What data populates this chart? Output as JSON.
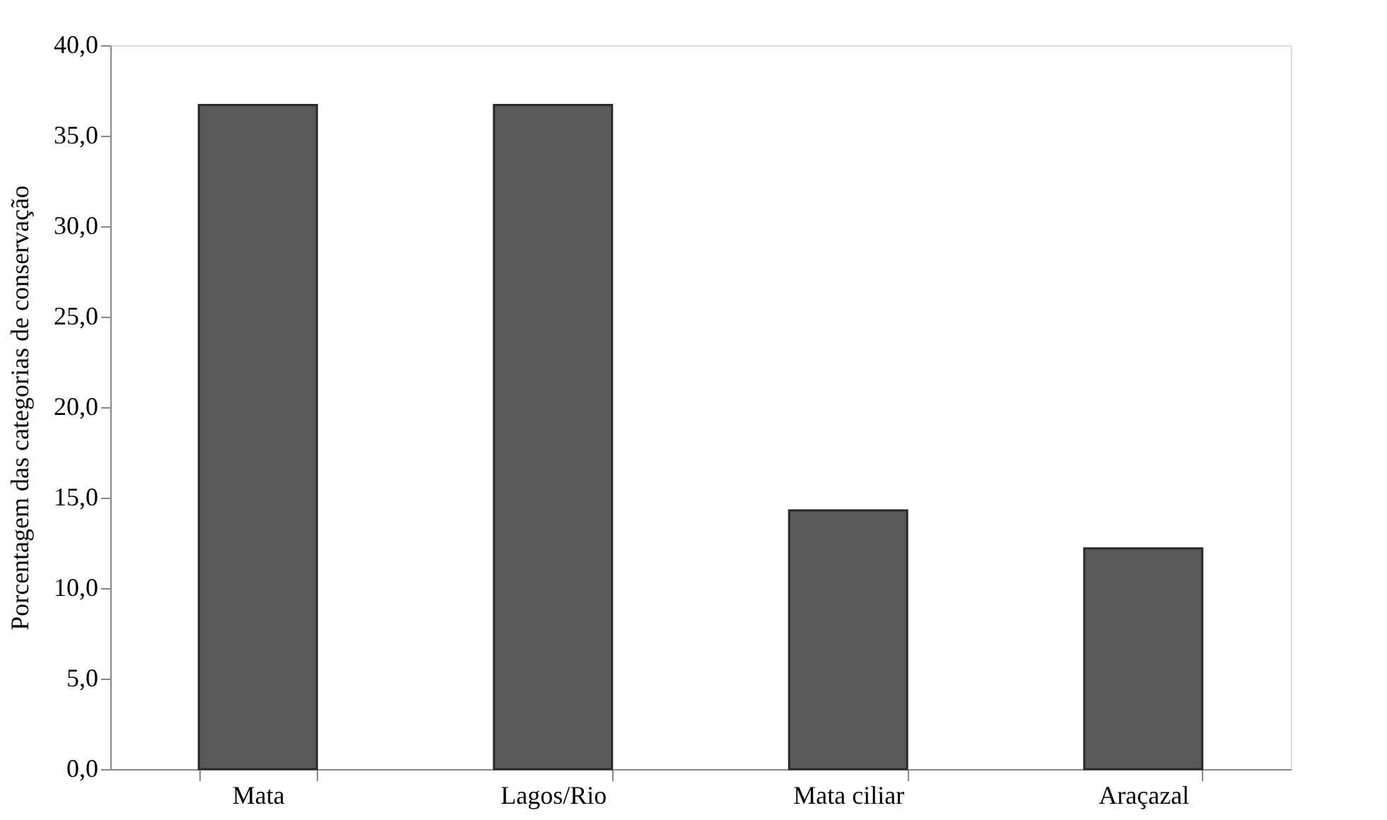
{
  "chart_data": {
    "type": "bar",
    "ylabel": "Porcentagem das categorias de conservação",
    "categories": [
      "Mata",
      "Lagos/Rio",
      "Mata ciliar",
      "Araçazal"
    ],
    "values": [
      36.7,
      36.7,
      14.3,
      12.2
    ],
    "color": "#595959",
    "ylim": [
      0,
      40
    ],
    "yticks": [
      {
        "value": 0,
        "label": "0,0"
      },
      {
        "value": 5,
        "label": "5,0"
      },
      {
        "value": 10,
        "label": "10,0"
      },
      {
        "value": 15,
        "label": "15,0"
      },
      {
        "value": 20,
        "label": "20,0"
      },
      {
        "value": 25,
        "label": "25,0"
      },
      {
        "value": 30,
        "label": "30,0"
      },
      {
        "value": 35,
        "label": "35,0"
      },
      {
        "value": 40,
        "label": "40,0"
      }
    ],
    "grid": false
  }
}
